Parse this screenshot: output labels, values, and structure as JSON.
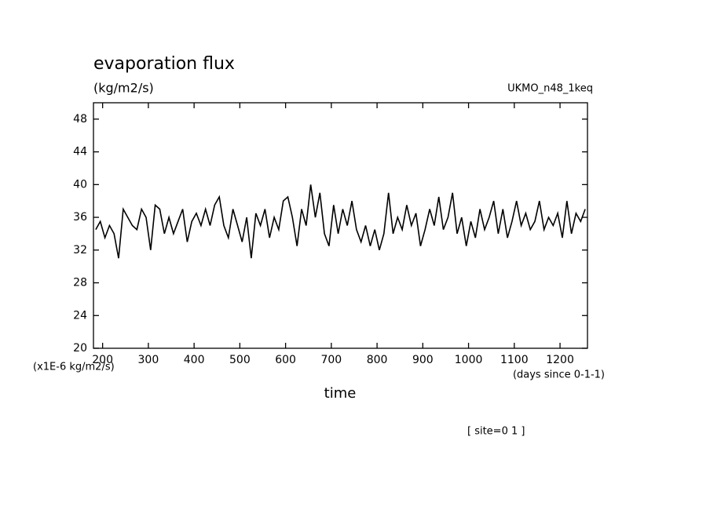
{
  "chart_data": {
    "type": "line",
    "title": "evaporation flux",
    "subtitle": "(kg/m2/s)",
    "annotations": [
      "UKMO_n48_1keq",
      "(x1E-6 kg/m2/s)",
      "(days since 0-1-1)",
      "[ site=0 1 ]"
    ],
    "xlabel": "time",
    "x": [
      185,
      195,
      205,
      215,
      225,
      235,
      245,
      255,
      265,
      275,
      285,
      295,
      305,
      315,
      325,
      335,
      345,
      355,
      365,
      375,
      385,
      395,
      405,
      415,
      425,
      435,
      445,
      455,
      465,
      475,
      485,
      495,
      505,
      515,
      525,
      535,
      545,
      555,
      565,
      575,
      585,
      595,
      605,
      615,
      625,
      635,
      645,
      655,
      665,
      675,
      685,
      695,
      705,
      715,
      725,
      735,
      745,
      755,
      765,
      775,
      785,
      795,
      805,
      815,
      825,
      835,
      845,
      855,
      865,
      875,
      885,
      895,
      905,
      915,
      925,
      935,
      945,
      955,
      965,
      975,
      985,
      995,
      1005,
      1015,
      1025,
      1035,
      1045,
      1055,
      1065,
      1075,
      1085,
      1095,
      1105,
      1115,
      1125,
      1135,
      1145,
      1155,
      1165,
      1175,
      1185,
      1195,
      1205,
      1215,
      1225,
      1235,
      1245,
      1255
    ],
    "series": [
      {
        "color": "#000000",
        "values": [
          34.5,
          35.5,
          33.5,
          35,
          34,
          31,
          37,
          36,
          35,
          34.5,
          37,
          36,
          32,
          37.5,
          37,
          34,
          36,
          34,
          35.5,
          37,
          33,
          35.5,
          36.5,
          35,
          37,
          35,
          37.5,
          38.5,
          35,
          33.5,
          37,
          35,
          33,
          36,
          31,
          36.5,
          35,
          37,
          33.5,
          36,
          34.5,
          38,
          38.5,
          36,
          32.5,
          37,
          35,
          40,
          36,
          39,
          34,
          32.5,
          37.5,
          34,
          37,
          35,
          38,
          34.5,
          33,
          35,
          32.5,
          34.5,
          32,
          34,
          39,
          34,
          36,
          34.5,
          37.5,
          35,
          36.5,
          32.5,
          34.5,
          37,
          35,
          38.5,
          34.5,
          36,
          39,
          34,
          36,
          32.5,
          35.5,
          33.5,
          37,
          34.5,
          36,
          38,
          34,
          37,
          33.5,
          35.5,
          38,
          35,
          36.5,
          34.5,
          35.5,
          38,
          34.5,
          36,
          35,
          36.5,
          33.5,
          38,
          34,
          36.5,
          35.5,
          37
        ]
      }
    ],
    "xlim": [
      180,
      1260
    ],
    "xticks": [
      200,
      300,
      400,
      500,
      600,
      700,
      800,
      900,
      1000,
      1100,
      1200
    ],
    "ylim": [
      20,
      50
    ],
    "yticks": [
      20,
      24,
      28,
      32,
      36,
      40,
      44,
      48
    ]
  }
}
